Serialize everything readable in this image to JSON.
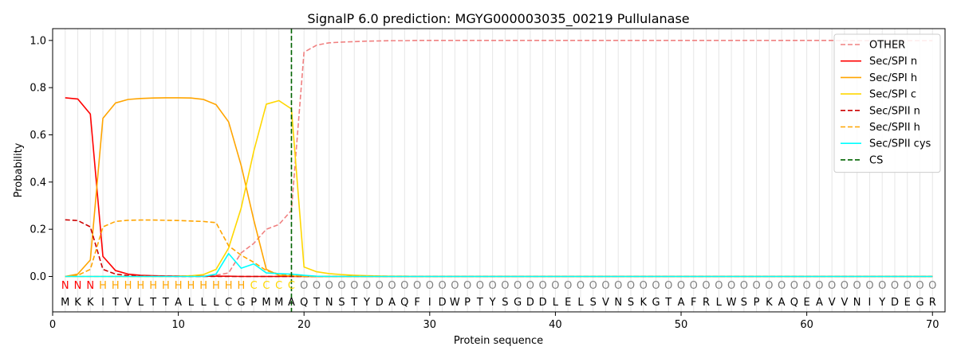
{
  "chart_data": {
    "type": "line",
    "title": "SignalP 6.0 prediction: MGYG000003035_00219 Pullulanase",
    "xlabel": "Protein sequence",
    "ylabel": "Probability",
    "xlim": [
      0,
      71
    ],
    "ylim": [
      -0.15,
      1.05
    ],
    "xticks": [
      0,
      10,
      20,
      30,
      40,
      50,
      60,
      70
    ],
    "yticks": [
      0.0,
      0.2,
      0.4,
      0.6,
      0.8,
      1.0
    ],
    "ytick_labels": [
      "0.0",
      "0.2",
      "0.4",
      "0.6",
      "0.8",
      "1.0"
    ],
    "sequence": [
      "M",
      "K",
      "K",
      "I",
      "T",
      "V",
      "L",
      "T",
      "T",
      "A",
      "L",
      "L",
      "L",
      "C",
      "G",
      "P",
      "M",
      "M",
      "A",
      "Q",
      "T",
      "N",
      "S",
      "T",
      "Y",
      "D",
      "A",
      "Q",
      "F",
      "I",
      "D",
      "W",
      "P",
      "T",
      "Y",
      "S",
      "G",
      "D",
      "D",
      "L",
      "E",
      "L",
      "S",
      "V",
      "N",
      "S",
      "K",
      "G",
      "T",
      "A",
      "F",
      "R",
      "L",
      "W",
      "S",
      "P",
      "K",
      "A",
      "Q",
      "E",
      "A",
      "V",
      "V",
      "N",
      "I",
      "Y",
      "D",
      "E",
      "G",
      "R"
    ],
    "region_labels": [
      "N",
      "N",
      "N",
      "H",
      "H",
      "H",
      "H",
      "H",
      "H",
      "H",
      "H",
      "H",
      "H",
      "H",
      "H",
      "C",
      "C",
      "C",
      "C",
      "O",
      "O",
      "O",
      "O",
      "O",
      "O",
      "O",
      "O",
      "O",
      "O",
      "O",
      "O",
      "O",
      "O",
      "O",
      "O",
      "O",
      "O",
      "O",
      "O",
      "O",
      "O",
      "O",
      "O",
      "O",
      "O",
      "O",
      "O",
      "O",
      "O",
      "O",
      "O",
      "O",
      "O",
      "O",
      "O",
      "O",
      "O",
      "O",
      "O",
      "O",
      "O",
      "O",
      "O",
      "O",
      "O",
      "O",
      "O",
      "O",
      "O",
      "O"
    ],
    "region_colors": {
      "N": "#ff0000",
      "H": "#ffa500",
      "C": "#ffd700",
      "O": "#808080"
    },
    "cs_position": 19,
    "legend_position": "top-right",
    "series": [
      {
        "name": "OTHER",
        "color": "#f08080",
        "dash": "dashed",
        "values": [
          0.0,
          0.0,
          0.0,
          0.0,
          0.0,
          0.0,
          0.0,
          0.0,
          0.0,
          0.0,
          0.0,
          0.0,
          0.005,
          0.015,
          0.1,
          0.14,
          0.2,
          0.22,
          0.28,
          0.95,
          0.98,
          0.99,
          0.993,
          0.995,
          0.997,
          0.998,
          0.999,
          0.999,
          1.0,
          1.0,
          1.0,
          1.0,
          1.0,
          1.0,
          1.0,
          1.0,
          1.0,
          1.0,
          1.0,
          1.0,
          1.0,
          1.0,
          1.0,
          1.0,
          1.0,
          1.0,
          1.0,
          1.0,
          1.0,
          1.0,
          1.0,
          1.0,
          1.0,
          1.0,
          1.0,
          1.0,
          1.0,
          1.0,
          1.0,
          1.0,
          1.0,
          1.0,
          0.999,
          0.999,
          0.999,
          0.999,
          0.999,
          0.999,
          0.999,
          0.999
        ]
      },
      {
        "name": "Sec/SPI n",
        "color": "#ff0000",
        "dash": "solid",
        "values": [
          0.757,
          0.752,
          0.688,
          0.085,
          0.025,
          0.01,
          0.005,
          0.003,
          0.002,
          0.002,
          0.001,
          0.001,
          0.001,
          0.001,
          0.0,
          0.0,
          0.0,
          0.0,
          0.0,
          0.0,
          0.0,
          0.0,
          0.0,
          0.0,
          0.0,
          0.0,
          0.0,
          0.0,
          0.0,
          0.0,
          0.0,
          0.0,
          0.0,
          0.0,
          0.0,
          0.0,
          0.0,
          0.0,
          0.0,
          0.0,
          0.0,
          0.0,
          0.0,
          0.0,
          0.0,
          0.0,
          0.0,
          0.0,
          0.0,
          0.0,
          0.0,
          0.0,
          0.0,
          0.0,
          0.0,
          0.0,
          0.0,
          0.0,
          0.0,
          0.0,
          0.0,
          0.0,
          0.0,
          0.0,
          0.0,
          0.0,
          0.0,
          0.0,
          0.0,
          0.0
        ]
      },
      {
        "name": "Sec/SPI h",
        "color": "#ffa500",
        "dash": "solid",
        "values": [
          0.0,
          0.01,
          0.07,
          0.67,
          0.735,
          0.75,
          0.754,
          0.756,
          0.757,
          0.757,
          0.756,
          0.75,
          0.728,
          0.655,
          0.47,
          0.24,
          0.03,
          0.005,
          0.002,
          0.0,
          0.0,
          0.0,
          0.0,
          0.0,
          0.0,
          0.0,
          0.0,
          0.0,
          0.0,
          0.0,
          0.0,
          0.0,
          0.0,
          0.0,
          0.0,
          0.0,
          0.0,
          0.0,
          0.0,
          0.0,
          0.0,
          0.0,
          0.0,
          0.0,
          0.0,
          0.0,
          0.0,
          0.0,
          0.0,
          0.0,
          0.0,
          0.0,
          0.0,
          0.0,
          0.0,
          0.0,
          0.0,
          0.0,
          0.0,
          0.0,
          0.0,
          0.0,
          0.0,
          0.0,
          0.0,
          0.0,
          0.0,
          0.0,
          0.0,
          0.0
        ]
      },
      {
        "name": "Sec/SPI c",
        "color": "#ffd700",
        "dash": "solid",
        "values": [
          0.0,
          0.0,
          0.0,
          0.0,
          0.0,
          0.0,
          0.0,
          0.0,
          0.0,
          0.001,
          0.003,
          0.008,
          0.03,
          0.12,
          0.29,
          0.53,
          0.73,
          0.745,
          0.71,
          0.04,
          0.02,
          0.012,
          0.008,
          0.005,
          0.003,
          0.002,
          0.001,
          0.001,
          0.0,
          0.0,
          0.0,
          0.0,
          0.0,
          0.0,
          0.0,
          0.0,
          0.0,
          0.0,
          0.0,
          0.0,
          0.0,
          0.0,
          0.0,
          0.0,
          0.0,
          0.0,
          0.0,
          0.0,
          0.0,
          0.0,
          0.0,
          0.0,
          0.0,
          0.0,
          0.0,
          0.0,
          0.0,
          0.0,
          0.0,
          0.0,
          0.0,
          0.0,
          0.0,
          0.0,
          0.0,
          0.0,
          0.0,
          0.0,
          0.0,
          0.0
        ]
      },
      {
        "name": "Sec/SPII n",
        "color": "#cc0000",
        "dash": "dashed",
        "values": [
          0.24,
          0.237,
          0.21,
          0.03,
          0.01,
          0.004,
          0.002,
          0.001,
          0.001,
          0.0,
          0.0,
          0.0,
          0.0,
          0.0,
          0.0,
          0.0,
          0.0,
          0.0,
          0.0,
          0.0,
          0.0,
          0.0,
          0.0,
          0.0,
          0.0,
          0.0,
          0.0,
          0.0,
          0.0,
          0.0,
          0.0,
          0.0,
          0.0,
          0.0,
          0.0,
          0.0,
          0.0,
          0.0,
          0.0,
          0.0,
          0.0,
          0.0,
          0.0,
          0.0,
          0.0,
          0.0,
          0.0,
          0.0,
          0.0,
          0.0,
          0.0,
          0.0,
          0.0,
          0.0,
          0.0,
          0.0,
          0.0,
          0.0,
          0.0,
          0.0,
          0.0,
          0.0,
          0.0,
          0.0,
          0.0,
          0.0,
          0.0,
          0.0,
          0.0,
          0.0
        ]
      },
      {
        "name": "Sec/SPII h",
        "color": "#ffa500",
        "dash": "dashed",
        "values": [
          0.0,
          0.005,
          0.03,
          0.21,
          0.233,
          0.238,
          0.239,
          0.239,
          0.238,
          0.237,
          0.235,
          0.233,
          0.228,
          0.13,
          0.09,
          0.06,
          0.025,
          0.01,
          0.005,
          0.001,
          0.0,
          0.0,
          0.0,
          0.0,
          0.0,
          0.0,
          0.0,
          0.0,
          0.0,
          0.0,
          0.0,
          0.0,
          0.0,
          0.0,
          0.0,
          0.0,
          0.0,
          0.0,
          0.0,
          0.0,
          0.0,
          0.0,
          0.0,
          0.0,
          0.0,
          0.0,
          0.0,
          0.0,
          0.0,
          0.0,
          0.0,
          0.0,
          0.0,
          0.0,
          0.0,
          0.0,
          0.0,
          0.0,
          0.0,
          0.0,
          0.0,
          0.0,
          0.0,
          0.0,
          0.0,
          0.0,
          0.0,
          0.0,
          0.0,
          0.0
        ]
      },
      {
        "name": "Sec/SPII cys",
        "color": "#00ffff",
        "dash": "solid",
        "values": [
          0.0,
          0.0,
          0.0,
          0.0,
          0.0,
          0.0,
          0.0,
          0.0,
          0.0,
          0.0,
          0.0,
          0.0,
          0.01,
          0.097,
          0.035,
          0.053,
          0.015,
          0.012,
          0.01,
          0.005,
          0.001,
          0.0,
          0.0,
          0.0,
          0.0,
          0.0,
          0.0,
          0.0,
          0.0,
          0.0,
          0.0,
          0.0,
          0.0,
          0.0,
          0.0,
          0.0,
          0.0,
          0.0,
          0.0,
          0.0,
          0.0,
          0.0,
          0.0,
          0.0,
          0.0,
          0.0,
          0.0,
          0.0,
          0.0,
          0.0,
          0.0,
          0.0,
          0.0,
          0.0,
          0.0,
          0.0,
          0.0,
          0.0,
          0.0,
          0.0,
          0.0,
          0.0,
          0.0,
          0.0,
          0.0,
          0.0,
          0.0,
          0.0,
          0.0,
          0.0
        ]
      }
    ],
    "legend_extra": [
      {
        "name": "CS",
        "color": "#006400",
        "dash": "dashed"
      }
    ]
  }
}
